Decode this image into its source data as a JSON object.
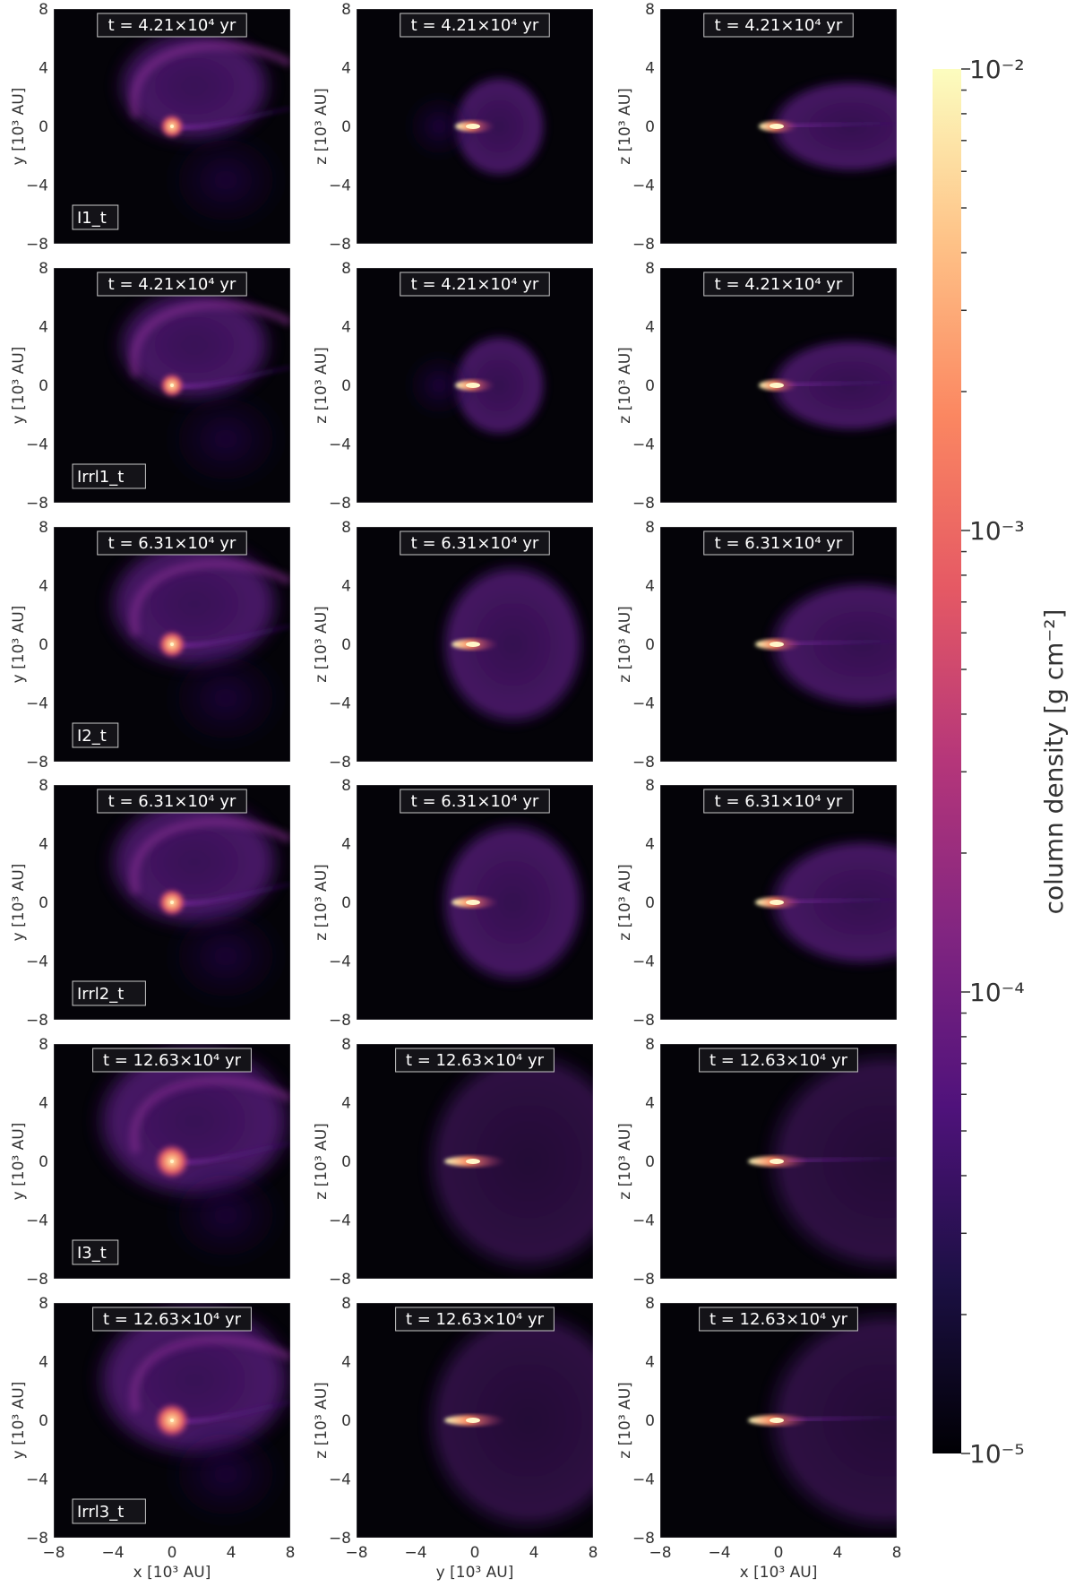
{
  "columns": [
    {
      "xlabel": "x [10³ AU]",
      "ylabel": "y [10³ AU]"
    },
    {
      "xlabel": "y [10³ AU]",
      "ylabel": "z [10³ AU]"
    },
    {
      "xlabel": "x [10³ AU]",
      "ylabel": "z [10³ AU]"
    }
  ],
  "ticks": [
    "−8",
    "−4",
    "0",
    "4",
    "8"
  ],
  "tick_values": [
    -8,
    -4,
    0,
    4,
    8
  ],
  "axis_range": [
    -8,
    8
  ],
  "rows": [
    {
      "run": "I1_t",
      "time": "t = 4.21×10⁴ yr"
    },
    {
      "run": "Irrl1_t",
      "time": "t = 4.21×10⁴ yr"
    },
    {
      "run": "I2_t",
      "time": "t = 6.31×10⁴ yr"
    },
    {
      "run": "Irrl2_t",
      "time": "t = 6.31×10⁴ yr"
    },
    {
      "run": "I3_t",
      "time": "t = 12.63×10⁴ yr"
    },
    {
      "run": "Irrl3_t",
      "time": "t = 12.63×10⁴ yr"
    }
  ],
  "colorbar": {
    "label": "column density [g cm⁻²]",
    "colormap": "magma",
    "scale": "log",
    "range": [
      1e-05,
      0.01
    ],
    "tick_labels": [
      "10⁻⁵",
      "10⁻⁴",
      "10⁻³",
      "10⁻²"
    ],
    "colors": [
      "#000004",
      "#1c1044",
      "#4f127b",
      "#812581",
      "#b5367a",
      "#e55964",
      "#fb8761",
      "#fec287",
      "#fcfdbf"
    ]
  }
}
